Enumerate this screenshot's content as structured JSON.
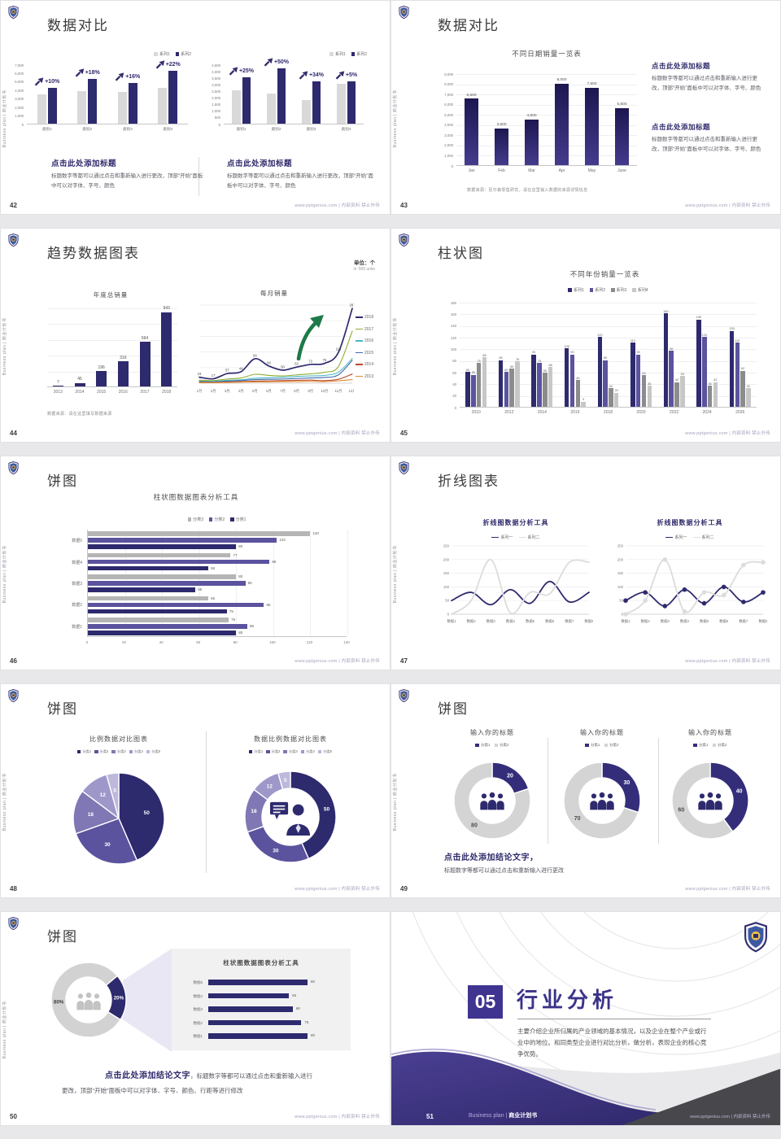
{
  "common": {
    "sidebar": "Business plan | 商业计划书",
    "footer": "www.pptgenius.com | 内部资料 禁止外传",
    "cap_h": "点击此处添加标题",
    "cap_b": "标题数字等都可以通过点击和重新输入进行更改，顶部“开始”面板中可以对字体、字号、颜色",
    "colors": {
      "navy": "#2e2a6e",
      "purple": "#5b539e",
      "gray_bar": "#d9d9d9",
      "green_arrow": "#1d7a49",
      "section_purple": "#3f3490"
    }
  },
  "slides": {
    "s42": {
      "page": "42",
      "title": "数据对比",
      "legend": [
        "系列1",
        "系列2"
      ]
    },
    "s43": {
      "page": "43",
      "title": "数据对比",
      "chart_title": "不同日期销量一览表",
      "source": "数据来源：尼尔森零售研究，请在这里输入数据的来源详情信息"
    },
    "s44": {
      "page": "44",
      "title": "趋势数据图表",
      "unit": "单位：个",
      "unit_sub": "in '000 units",
      "annual_title": "年度总销量",
      "monthly_title": "每月销量",
      "source": "数据来源：请在这里填写数据来源"
    },
    "s45": {
      "page": "45",
      "title": "柱状图",
      "chart_title": "不同年份销量一览表",
      "legend": [
        "系列1",
        "系列2",
        "系列3",
        "系列4"
      ]
    },
    "s46": {
      "page": "46",
      "title": "饼图",
      "chart_title": "柱状图数据图表分析工具",
      "legend": [
        "分类3",
        "分类2",
        "分类1"
      ]
    },
    "s47": {
      "page": "47",
      "title": "折线图表",
      "chart_title": "折线图数据分析工具",
      "legend": [
        "系列一",
        "系列二"
      ]
    },
    "s48": {
      "page": "48",
      "title": "饼图",
      "left_title": "比例数据对比图表",
      "right_title": "数据比例数据对比图表",
      "legend": [
        "分类1",
        "分类2",
        "分类3",
        "分类4",
        "分类5"
      ]
    },
    "s49": {
      "page": "49",
      "title": "饼图",
      "item_title": "输入你的标题",
      "legend": [
        "分类1",
        "分类2"
      ],
      "concl_h": "点击此处添加结论文字，",
      "concl_b": "标题数字等都可以通过点击和重新输入进行更改"
    },
    "s50": {
      "page": "50",
      "title": "饼图",
      "panel_title": "柱状图数据图表分析工具",
      "concl_bold": "点击此处添加结论文字",
      "concl_rest": "，标题数字等都可以通过点击和重新输入进行",
      "concl_line2": "更改，顶部“开始”面板中可以对字体、字号、颜色、行距等进行修改"
    },
    "s51": {
      "page": "51",
      "number": "05",
      "title": "行业分析",
      "body": "主要介绍企业所归属的产业领域的基本情况，以及企业在整个产业或行业中的地位。和同类型企业进行对比分析，做分析，表现企业的核心竞争优势。",
      "brand_en": "Business plan | ",
      "brand_cn": "商业计划书"
    }
  },
  "chart_data": [
    {
      "id": "42L",
      "type": "bar",
      "categories": [
        "类别1",
        "类别2",
        "类别3",
        "类别4"
      ],
      "series": [
        {
          "name": "系列1",
          "color": "#d9d9d9",
          "values": [
            3500,
            3800,
            3700,
            4200
          ]
        },
        {
          "name": "系列2",
          "color": "#2e2a6e",
          "values": [
            4200,
            5300,
            4800,
            6200
          ]
        }
      ],
      "annotations": [
        "+10%",
        "+18%",
        "+16%",
        "+22%"
      ],
      "ylim": [
        0,
        7000
      ],
      "yticks": [
        "7,000",
        "6,000",
        "5,000",
        "4,000",
        "3,000",
        "2,000",
        "1,000",
        "0"
      ]
    },
    {
      "id": "42R",
      "type": "bar",
      "categories": [
        "类别1",
        "类别2",
        "类别3",
        "类别4"
      ],
      "series": [
        {
          "name": "系列1",
          "color": "#d9d9d9",
          "values": [
            2500,
            2300,
            1800,
            3000
          ]
        },
        {
          "name": "系列2",
          "color": "#2e2a6e",
          "values": [
            3500,
            4200,
            3200,
            3200
          ]
        }
      ],
      "annotations": [
        "+25%",
        "+50%",
        "+34%",
        "+5%"
      ],
      "ylim": [
        0,
        4500
      ],
      "yticks": [
        "4,500",
        "4,000",
        "3,500",
        "3,000",
        "2,500",
        "2,000",
        "1,500",
        "1,000",
        "500",
        "0"
      ]
    },
    {
      "id": "43",
      "type": "bar",
      "title": "不同日期销量一览表",
      "categories": [
        "Jan",
        "Feb",
        "Mar",
        "Apr",
        "May",
        "June"
      ],
      "values": [
        6500,
        3600,
        4500,
        8000,
        7600,
        5600
      ],
      "labels": [
        "6,500",
        "3,600",
        "4,500",
        "8,000",
        "7,600",
        "5,600"
      ],
      "ylim": [
        0,
        9000
      ],
      "yticks": [
        "9,000",
        "8,000",
        "7,000",
        "6,000",
        "5,000",
        "4,000",
        "3,000",
        "2,000",
        "1,000",
        "0"
      ],
      "bar_gradient": [
        "#1c1750",
        "#443b8d"
      ]
    },
    {
      "id": "44A",
      "type": "bar",
      "title": "年度总销量",
      "categories": [
        "2013",
        "2014",
        "2015",
        "2016",
        "2017",
        "2018"
      ],
      "values": [
        7,
        45,
        196,
        316,
        564,
        943
      ],
      "ylim": [
        0,
        1000
      ]
    },
    {
      "id": "44M",
      "type": "line",
      "title": "每月销量",
      "ylim": [
        0,
        300
      ],
      "x": [
        "1月",
        "2月",
        "3月",
        "4月",
        "5月",
        "6月",
        "7月",
        "8月",
        "9月",
        "10月",
        "11月",
        "12月"
      ],
      "series": [
        {
          "name": "2018",
          "color": "#2e2a6e",
          "values": [
            23,
            17,
            37,
            44,
            94,
            66,
            50,
            62,
            72,
            76,
            118,
            287
          ],
          "labeled": true
        },
        {
          "name": "2017",
          "color": "#8fae2f",
          "values": [
            12,
            10,
            16,
            20,
            34,
            30,
            28,
            32,
            36,
            42,
            64,
            200
          ]
        },
        {
          "name": "2016",
          "color": "#4cb8c4",
          "values": [
            8,
            7,
            11,
            13,
            19,
            21,
            23,
            26,
            28,
            30,
            42,
            95
          ]
        },
        {
          "name": "2015",
          "color": "#3f6cae",
          "values": [
            6,
            5,
            8,
            10,
            14,
            15,
            16,
            18,
            20,
            22,
            32,
            88
          ]
        },
        {
          "name": "2014",
          "color": "#b84a2a",
          "values": [
            4,
            3,
            5,
            6,
            8,
            9,
            10,
            11,
            12,
            10,
            15,
            35
          ]
        },
        {
          "name": "2013",
          "color": "#e0882e",
          "values": [
            2,
            2,
            3,
            4,
            5,
            5,
            6,
            6,
            7,
            6,
            9,
            14
          ]
        }
      ]
    },
    {
      "id": "45",
      "type": "bar",
      "title": "不同年份销量一览表",
      "categories": [
        "2010",
        "2012",
        "2014",
        "2016",
        "2018",
        "2020",
        "2022",
        "2024",
        "2026"
      ],
      "series": [
        {
          "name": "系列1",
          "color": "#2e2a6e",
          "values": [
            60,
            80,
            90,
            100,
            120,
            110,
            160,
            150,
            130
          ]
        },
        {
          "name": "系列2",
          "color": "#5b539e",
          "values": [
            55,
            60,
            75,
            90,
            80,
            90,
            96,
            120,
            110
          ]
        },
        {
          "name": "系列3",
          "color": "#8c8c8c",
          "values": [
            75,
            65,
            58,
            46,
            32,
            54,
            42,
            36,
            62
          ]
        },
        {
          "name": "系列4",
          "color": "#c7c7c7",
          "values": [
            85,
            78,
            68,
            9,
            24,
            36,
            53,
            42,
            32
          ]
        }
      ],
      "ylim": [
        0,
        180
      ],
      "yticks": [
        "180",
        "160",
        "140",
        "120",
        "100",
        "80",
        "60",
        "40",
        "20",
        "0"
      ]
    },
    {
      "id": "46",
      "type": "bar",
      "orientation": "horizontal",
      "title": "柱状图数据图表分析工具",
      "categories": [
        "数据5",
        "数据4",
        "数据3",
        "数据2",
        "数据1"
      ],
      "series": [
        {
          "name": "分类3",
          "color": "#b5b5b5",
          "values": [
            120,
            77,
            80,
            65,
            76
          ]
        },
        {
          "name": "分类2",
          "color": "#5b539e",
          "values": [
            102,
            98,
            85,
            95,
            86
          ]
        },
        {
          "name": "分类1",
          "color": "#2e2a6e",
          "values": [
            80,
            65,
            58,
            75,
            80
          ]
        }
      ],
      "xlim": [
        0,
        140
      ],
      "xticks": [
        "0",
        "20",
        "40",
        "60",
        "80",
        "100",
        "120",
        "140"
      ]
    },
    {
      "id": "47L",
      "type": "line",
      "title": "折线图数据分析工具",
      "x": [
        "数据1",
        "数据2",
        "数据3",
        "数据4",
        "数据5",
        "数据6",
        "数据7",
        "数据8"
      ],
      "ylim": [
        0,
        250
      ],
      "yticks": [
        "250",
        "200",
        "150",
        "100",
        "50",
        "0"
      ],
      "series": [
        {
          "name": "系列一",
          "color": "#2e2a6e",
          "values": [
            50,
            80,
            35,
            90,
            40,
            120,
            45,
            80
          ]
        },
        {
          "name": "系列二",
          "color": "#dcdcdc",
          "values": [
            0,
            50,
            200,
            5,
            80,
            75,
            190,
            190
          ]
        }
      ]
    },
    {
      "id": "47R",
      "type": "line",
      "title": "折线图数据分析工具",
      "markers": true,
      "x": [
        "数据1",
        "数据2",
        "数据3",
        "数据4",
        "数据5",
        "数据6",
        "数据7",
        "数据8"
      ],
      "ylim": [
        0,
        250
      ],
      "yticks": [
        "250",
        "200",
        "150",
        "100",
        "50",
        "0"
      ],
      "series": [
        {
          "name": "系列一",
          "color": "#2e2a6e",
          "values": [
            50,
            80,
            30,
            90,
            40,
            100,
            45,
            80
          ]
        },
        {
          "name": "系列二",
          "color": "#dcdcdc",
          "values": [
            0,
            50,
            200,
            10,
            80,
            70,
            180,
            190
          ]
        }
      ]
    },
    {
      "id": "48",
      "type": "pie",
      "titles": [
        "比例数据对比图表",
        "数据比例数据对比图表"
      ],
      "labels": [
        "分类1",
        "分类2",
        "分类3",
        "分类4",
        "分类5"
      ],
      "values": [
        50,
        30,
        18,
        12,
        5
      ],
      "colors": [
        "#2e2a6e",
        "#5b539e",
        "#7f78b4",
        "#9e98ca",
        "#bdb8dc"
      ]
    },
    {
      "id": "49",
      "type": "pie",
      "title": "输入你的标题",
      "labels": [
        "分类1",
        "分类2"
      ],
      "donuts": [
        [
          20,
          80
        ],
        [
          30,
          70
        ],
        [
          40,
          60
        ]
      ],
      "colors": [
        "#342d7a",
        "#d4d4d4"
      ]
    },
    {
      "id": "50",
      "type": "pie",
      "values": [
        20,
        80
      ],
      "labels": [
        "20%",
        "80%"
      ],
      "colors": [
        "#2e2a6e",
        "#d2d2d2"
      ],
      "bars": {
        "title": "柱状图数据图表分析工具",
        "categories": [
          "数据5",
          "数据4",
          "数据3",
          "数据2",
          "数据1"
        ],
        "values": [
          80,
          65,
          68,
          75,
          80
        ],
        "xmax": 100
      }
    }
  ]
}
